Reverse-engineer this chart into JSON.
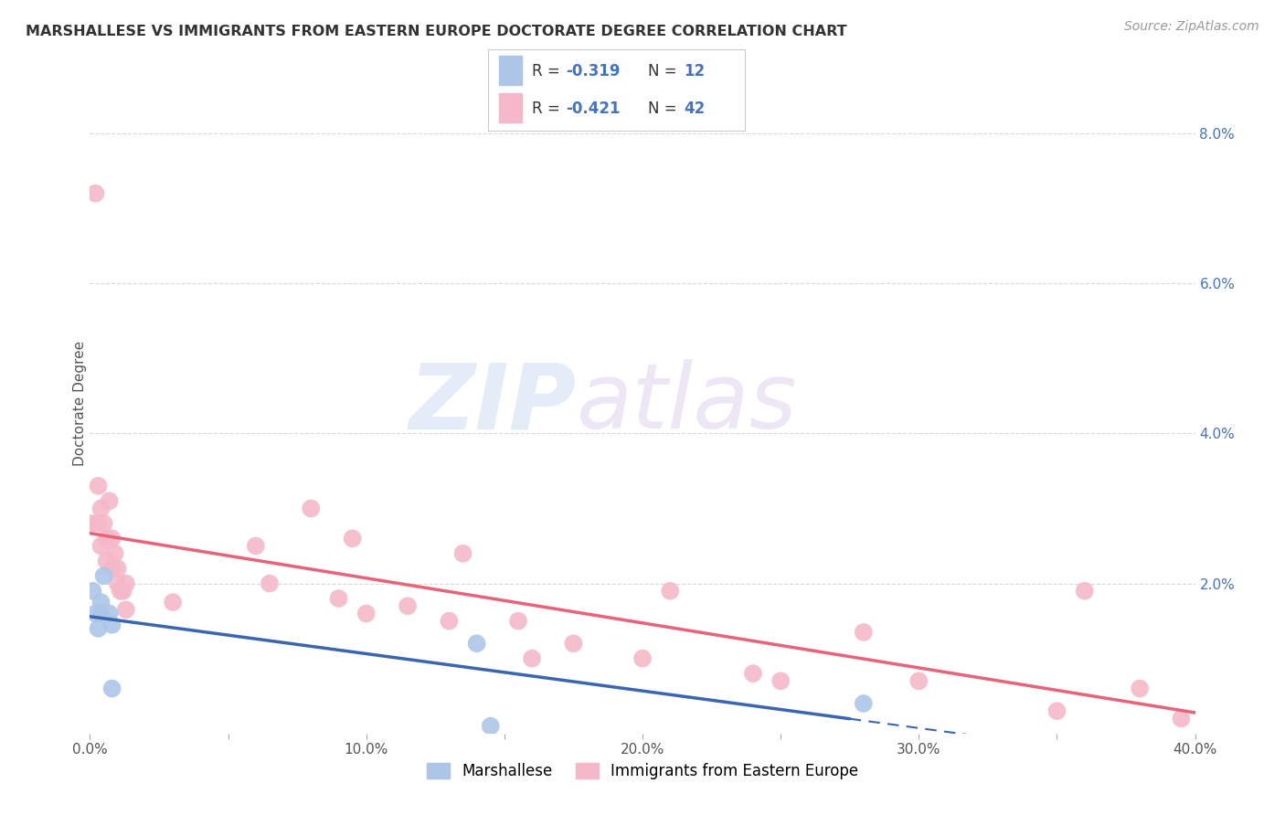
{
  "title": "MARSHALLESE VS IMMIGRANTS FROM EASTERN EUROPE DOCTORATE DEGREE CORRELATION CHART",
  "source": "Source: ZipAtlas.com",
  "ylabel_left": "Doctorate Degree",
  "xlim": [
    0,
    0.4
  ],
  "ylim": [
    0,
    0.088
  ],
  "xtick_positions": [
    0.0,
    0.05,
    0.1,
    0.15,
    0.2,
    0.25,
    0.3,
    0.35,
    0.4
  ],
  "xtick_labels": [
    "0.0%",
    "",
    "10.0%",
    "",
    "20.0%",
    "",
    "30.0%",
    "",
    "40.0%"
  ],
  "ytick_positions": [
    0.0,
    0.02,
    0.04,
    0.06,
    0.08
  ],
  "ytick_labels": [
    "",
    "2.0%",
    "4.0%",
    "6.0%",
    "8.0%"
  ],
  "blue_color": "#adc6e8",
  "pink_color": "#f5b8c8",
  "blue_line_color": "#3a65b0",
  "pink_line_color": "#e8637a",
  "blue_R": "-0.319",
  "blue_N": "12",
  "pink_R": "-0.421",
  "pink_N": "42",
  "blue_scatter_x": [
    0.001,
    0.002,
    0.003,
    0.004,
    0.004,
    0.005,
    0.007,
    0.008,
    0.008,
    0.14,
    0.145,
    0.28
  ],
  "blue_scatter_y": [
    0.019,
    0.016,
    0.014,
    0.0175,
    0.016,
    0.021,
    0.016,
    0.0145,
    0.006,
    0.012,
    0.001,
    0.004
  ],
  "pink_scatter_x": [
    0.001,
    0.002,
    0.003,
    0.003,
    0.004,
    0.004,
    0.005,
    0.006,
    0.006,
    0.007,
    0.008,
    0.008,
    0.009,
    0.01,
    0.01,
    0.011,
    0.012,
    0.013,
    0.013,
    0.03,
    0.06,
    0.065,
    0.08,
    0.09,
    0.095,
    0.1,
    0.115,
    0.13,
    0.135,
    0.155,
    0.16,
    0.175,
    0.2,
    0.21,
    0.24,
    0.25,
    0.28,
    0.3,
    0.35,
    0.36,
    0.38,
    0.395
  ],
  "pink_scatter_y": [
    0.028,
    0.072,
    0.033,
    0.028,
    0.025,
    0.03,
    0.028,
    0.026,
    0.023,
    0.031,
    0.026,
    0.022,
    0.024,
    0.022,
    0.02,
    0.019,
    0.019,
    0.0165,
    0.02,
    0.0175,
    0.025,
    0.02,
    0.03,
    0.018,
    0.026,
    0.016,
    0.017,
    0.015,
    0.024,
    0.015,
    0.01,
    0.012,
    0.01,
    0.019,
    0.008,
    0.007,
    0.0135,
    0.007,
    0.003,
    0.019,
    0.006,
    0.002
  ],
  "watermark_zip": "ZIP",
  "watermark_atlas": "atlas",
  "bg_color": "#ffffff",
  "grid_color": "#d8d8d8",
  "legend_blue_label": "Marshallese",
  "legend_pink_label": "Immigrants from Eastern Europe",
  "blue_line_x_solid_end": 0.275,
  "blue_line_x_dash_start": 0.275,
  "blue_line_x_end": 0.4,
  "pink_line_x_start": 0.0,
  "pink_line_x_end": 0.4
}
